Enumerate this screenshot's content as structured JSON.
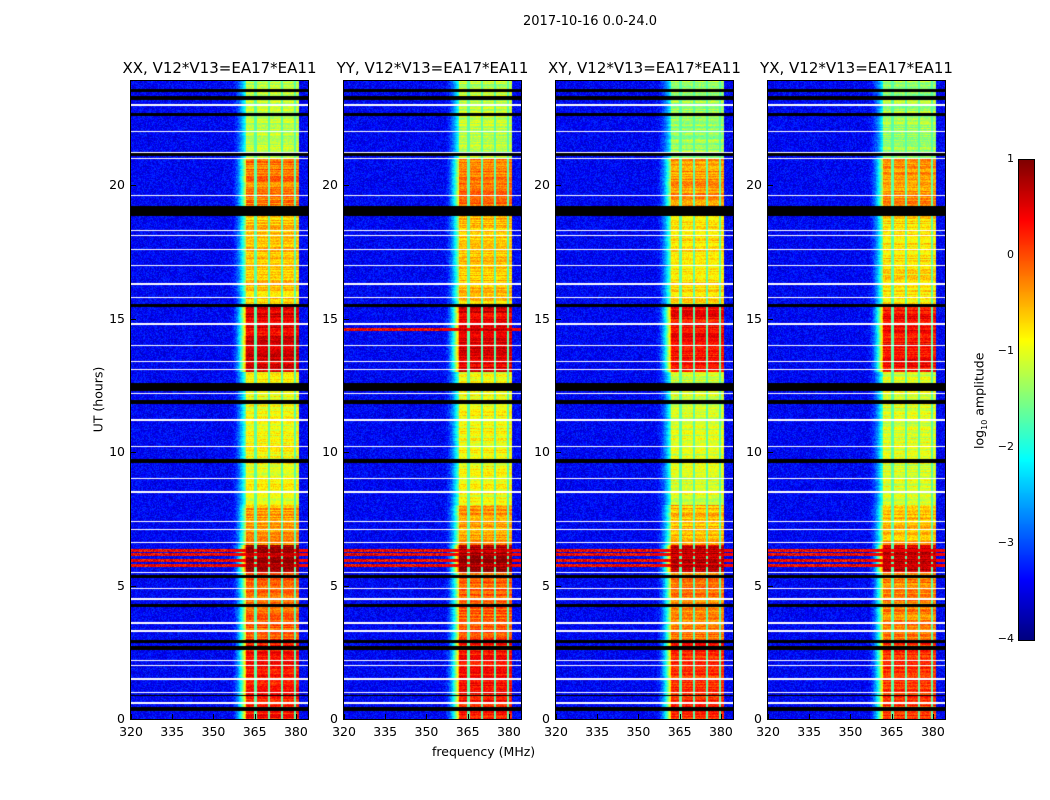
{
  "suptitle": "2017-10-16 0.0-24.0",
  "chart_data": [
    {
      "type": "heatmap",
      "title": "XX, V12*V13=EA17*EA11",
      "pol": "XX",
      "extra_rfi_hours": []
    },
    {
      "type": "heatmap",
      "title": "YY, V12*V13=EA17*EA11",
      "pol": "YY",
      "extra_rfi_hours": [
        14.6
      ]
    },
    {
      "type": "heatmap",
      "title": "XY, V12*V13=EA17*EA11",
      "pol": "XY",
      "extra_rfi_hours": []
    },
    {
      "type": "heatmap",
      "title": "YX, V12*V13=EA17*EA11",
      "pol": "YX",
      "extra_rfi_hours": []
    }
  ],
  "shared": {
    "xlabel": "frequency (MHz)",
    "ylabel": "UT (hours)",
    "xlim": [
      320,
      384.4
    ],
    "ylim": [
      0,
      23.9
    ],
    "xticks": [
      320,
      335,
      350,
      365,
      380
    ],
    "xtick_labels": [
      "320",
      "335",
      "350",
      "365",
      "380"
    ],
    "yticks": [
      0,
      5,
      10,
      15,
      20
    ],
    "ytick_labels": [
      "0",
      "5",
      "10",
      "15",
      "20"
    ],
    "background_level": -3.4,
    "band_edges_mhz": [
      356,
      362,
      381
    ],
    "channel_gaps_mhz": [
      365.3,
      370.2,
      375.0,
      379.8
    ],
    "band_level_by_hour": [
      {
        "from": 0,
        "to": 3,
        "level": 0.3
      },
      {
        "from": 3,
        "to": 5.5,
        "level": -0.1
      },
      {
        "from": 5.5,
        "to": 6.5,
        "level": 0.8
      },
      {
        "from": 6.5,
        "to": 8,
        "level": -0.4
      },
      {
        "from": 8,
        "to": 13,
        "level": -0.9
      },
      {
        "from": 13,
        "to": 15.5,
        "level": 0.5
      },
      {
        "from": 15.5,
        "to": 19,
        "level": -0.6
      },
      {
        "from": 19,
        "to": 21,
        "level": -0.2
      },
      {
        "from": 21,
        "to": 24,
        "level": -1.2
      }
    ],
    "rfi_hours": [
      5.75,
      5.95,
      6.15,
      6.3
    ],
    "flagged_white_hours": [
      0.6,
      1.0,
      1.5,
      2.0,
      2.2,
      3.3,
      3.6,
      4.5,
      4.9,
      5.5,
      6.6,
      7.1,
      7.4,
      8.5,
      9.0,
      10.2,
      11.2,
      12.2,
      13.1,
      13.4,
      14.0,
      14.8,
      15.8,
      16.3,
      17.0,
      17.6,
      18.1,
      18.3,
      19.6,
      21.0,
      21.2,
      22.0,
      23.0
    ],
    "flagged_black_hours": [
      [
        0.3,
        0.45
      ],
      [
        0.85,
        0.9
      ],
      [
        2.6,
        2.75
      ],
      [
        2.85,
        2.95
      ],
      [
        4.2,
        4.3
      ],
      [
        5.3,
        5.38
      ],
      [
        9.6,
        9.75
      ],
      [
        11.8,
        11.95
      ],
      [
        12.3,
        12.6
      ],
      [
        15.45,
        15.55
      ],
      [
        18.85,
        19.2
      ],
      [
        21.1,
        21.2
      ],
      [
        22.6,
        22.7
      ],
      [
        23.2,
        23.35
      ],
      [
        23.5,
        23.6
      ]
    ]
  },
  "colorbar": {
    "label": "log10 amplitude",
    "label_main": "log",
    "label_sub": "10",
    "label_rest": " amplitude",
    "range": [
      -4,
      1
    ],
    "ticks": [
      "1",
      "0",
      "−1",
      "−2",
      "−3",
      "−4"
    ],
    "colormap": "jet"
  }
}
